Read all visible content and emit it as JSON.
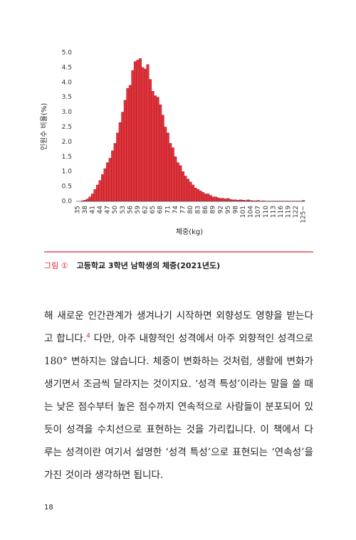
{
  "chart_data": {
    "type": "bar",
    "y_label": "인원수 비율(%)",
    "x_label": "체중(kg)",
    "color": "#e2343c",
    "edge_color": "#9e1a22",
    "categories": [
      "35",
      null,
      null,
      "38",
      null,
      null,
      "41",
      null,
      null,
      "44",
      null,
      null,
      "47",
      null,
      null,
      "50",
      null,
      null,
      "53",
      null,
      null,
      "56",
      null,
      null,
      "59",
      null,
      null,
      "62",
      null,
      null,
      "65",
      null,
      null,
      "68",
      null,
      null,
      "71",
      null,
      null,
      "74",
      null,
      null,
      "77",
      null,
      null,
      "80",
      null,
      null,
      "83",
      null,
      null,
      "86",
      null,
      null,
      "89",
      null,
      null,
      "92",
      null,
      null,
      "95",
      null,
      null,
      "98",
      null,
      null,
      "101",
      null,
      null,
      "104",
      null,
      null,
      "107",
      null,
      null,
      "110",
      null,
      null,
      "113",
      null,
      null,
      "116",
      null,
      null,
      "119",
      null,
      null,
      "122",
      null,
      null,
      "125~"
    ],
    "values": [
      0,
      0,
      0.02,
      0.04,
      0.08,
      0.15,
      0.25,
      0.4,
      0.55,
      0.7,
      0.9,
      1.1,
      1.3,
      1.45,
      1.7,
      1.95,
      2.3,
      2.65,
      3.0,
      3.4,
      3.8,
      3.9,
      4.4,
      4.7,
      4.75,
      4.8,
      4.5,
      4.45,
      4.6,
      4.1,
      3.7,
      3.55,
      3.5,
      3.25,
      2.9,
      2.5,
      2.3,
      1.95,
      1.8,
      1.5,
      1.3,
      1.2,
      1.0,
      0.85,
      0.75,
      0.65,
      0.55,
      0.45,
      0.4,
      0.35,
      0.3,
      0.25,
      0.25,
      0.2,
      0.15,
      0.15,
      0.12,
      0.1,
      0.1,
      0.08,
      0.1,
      0.06,
      0.05,
      0.05,
      0.04,
      0.05,
      0.04,
      0.03,
      0.05,
      0.03,
      0.02,
      0.02,
      0.03,
      0.01,
      0.02,
      0.01,
      0.01,
      0.01,
      0.01,
      0.01,
      0.01,
      0.01,
      0.01,
      0.01,
      0.01,
      0.01,
      0.01,
      0.01,
      0.01,
      0.01,
      0.03
    ],
    "ylim": [
      0,
      5
    ],
    "yticks": [
      {
        "value": 0,
        "label": "0.0"
      },
      0.5,
      {
        "value": 1,
        "label": "1.0"
      },
      1.5,
      {
        "value": 2,
        "label": "2.0"
      },
      2.5,
      {
        "value": 3,
        "label": "3.0"
      },
      3.5,
      {
        "value": 4,
        "label": "4.0"
      },
      4.5,
      {
        "value": 5,
        "label": "5.0"
      }
    ],
    "grid": false
  },
  "caption": {
    "number": "그림 ①",
    "text": "고등학교 3학년 남학생의 체중(2021년도)"
  },
  "body": {
    "lines": [
      "해 새로운 인간관계가 생겨나기 시작하면 외향성도 영향을 받는다",
      {
        "before": "고 합니다.",
        "footnote": "4",
        "after": " 다만, 아주 내향적인 성격에서 아주 외향적인 성격으로"
      },
      "180° 변하지는 않습니다. 체중이 변화하는 것처럼, 생활에 변화가",
      "생기면서 조금씩 달라지는 것이지요. ‘성격 특성’이라는 말을 쓸 때",
      "는 낮은 점수부터 높은 점수까지 연속적으로 사람들이 분포되어 있",
      "듯이 성격을 수치선으로 표현하는 것을 가리킵니다. 이 책에서 다",
      "루는 성격이란 여기서 설명한 ‘성격 특성’으로 표현되는 ‘연속성’을",
      "가진 것이라 생각하면 됩니다."
    ]
  },
  "page_number": "18"
}
